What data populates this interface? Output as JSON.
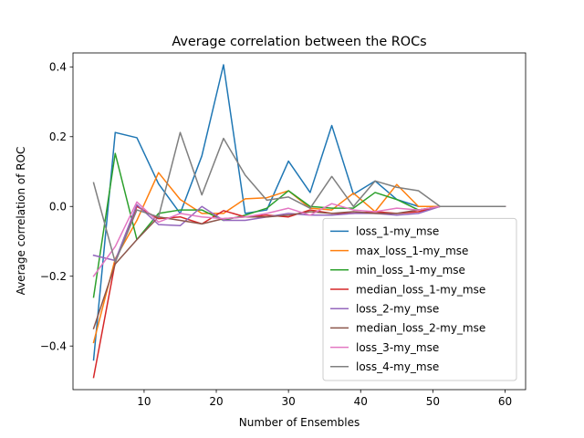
{
  "chart_data": {
    "type": "line",
    "title": "Average correlation between the ROCs",
    "xlabel": "Number of Ensembles",
    "ylabel": "Average correlation of ROC",
    "xlim": [
      0.15,
      62.85
    ],
    "ylim": [
      -0.525,
      0.44
    ],
    "xticks": [
      10,
      20,
      30,
      40,
      50,
      60
    ],
    "yticks": [
      -0.4,
      -0.2,
      0.0,
      0.2,
      0.4
    ],
    "xtick_labels": [
      "10",
      "20",
      "30",
      "40",
      "50",
      "60"
    ],
    "ytick_labels": [
      "−0.4",
      "−0.2",
      "0.0",
      "0.2",
      "0.4"
    ],
    "grid": false,
    "legend_position": "lower right",
    "x": [
      3,
      6,
      9,
      12,
      15,
      18,
      21,
      24,
      27,
      30,
      33,
      36,
      39,
      42,
      45,
      48,
      51,
      54,
      57,
      60
    ],
    "series": [
      {
        "name": "loss_1-my_mse",
        "color": "#1f77b4",
        "values": [
          -0.44,
          0.212,
          0.197,
          0.065,
          -0.02,
          0.145,
          0.406,
          -0.02,
          -0.01,
          0.13,
          0.04,
          0.232,
          0.035,
          0.073,
          0.02,
          0.0,
          0.0,
          0.0,
          0.0,
          0.0
        ]
      },
      {
        "name": "max_loss_1-my_mse",
        "color": "#ff7f0e",
        "values": [
          -0.39,
          -0.15,
          -0.04,
          0.097,
          0.02,
          -0.02,
          -0.02,
          0.022,
          0.025,
          0.045,
          -0.005,
          -0.01,
          0.038,
          -0.015,
          0.063,
          0.0,
          0.0,
          0.0,
          0.0,
          0.0
        ]
      },
      {
        "name": "min_loss_1-my_mse",
        "color": "#2ca02c",
        "values": [
          -0.26,
          0.152,
          -0.095,
          -0.02,
          -0.01,
          -0.01,
          -0.04,
          -0.025,
          -0.005,
          0.045,
          0.0,
          -0.005,
          -0.005,
          0.04,
          0.02,
          -0.01,
          0.0,
          0.0,
          0.0,
          0.0
        ]
      },
      {
        "name": "median_loss_1-my_mse",
        "color": "#d62728",
        "values": [
          -0.49,
          -0.16,
          0.0,
          -0.035,
          -0.03,
          -0.05,
          -0.012,
          -0.03,
          -0.025,
          -0.03,
          -0.01,
          -0.02,
          -0.02,
          -0.015,
          -0.02,
          -0.015,
          0.0,
          0.0,
          0.0,
          0.0
        ]
      },
      {
        "name": "loss_2-my_mse",
        "color": "#9467bd",
        "values": [
          -0.14,
          -0.155,
          0.005,
          -0.052,
          -0.055,
          0.0,
          -0.04,
          -0.04,
          -0.03,
          -0.02,
          -0.025,
          -0.025,
          -0.02,
          -0.02,
          -0.025,
          -0.02,
          0.0,
          0.0,
          0.0,
          0.0
        ]
      },
      {
        "name": "median_loss_2-my_mse",
        "color": "#8c564b",
        "values": [
          -0.35,
          -0.165,
          -0.095,
          -0.03,
          -0.04,
          -0.05,
          -0.035,
          -0.03,
          -0.03,
          -0.025,
          -0.015,
          -0.02,
          -0.015,
          -0.02,
          -0.02,
          -0.01,
          0.0,
          0.0,
          0.0,
          0.0
        ]
      },
      {
        "name": "loss_3-my_mse",
        "color": "#e377c2",
        "values": [
          -0.2,
          -0.115,
          0.013,
          -0.045,
          -0.02,
          -0.03,
          -0.035,
          -0.03,
          -0.02,
          -0.005,
          -0.025,
          0.008,
          -0.01,
          -0.015,
          -0.005,
          -0.01,
          0.0,
          0.0,
          0.0,
          0.0
        ]
      },
      {
        "name": "loss_4-my_mse",
        "color": "#7f7f7f",
        "values": [
          0.068,
          -0.16,
          -0.01,
          -0.03,
          0.212,
          0.033,
          0.195,
          0.09,
          0.018,
          0.027,
          -0.005,
          0.086,
          0.0,
          0.073,
          0.055,
          0.045,
          0.0,
          0.0,
          0.0,
          0.0
        ]
      }
    ]
  }
}
